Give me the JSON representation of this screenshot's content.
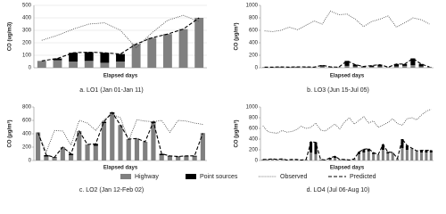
{
  "chart_data": [
    {
      "type": "bar",
      "title": "a. LO1 (Jan 01-Jan 11)",
      "x_label": "Elapsed days",
      "y_label": "CO (ug/m3)",
      "categories": [
        null,
        null,
        null,
        null,
        null,
        null,
        null,
        null,
        null,
        null,
        null
      ],
      "ylim": [
        0,
        500
      ],
      "yticks": [
        0,
        100,
        200,
        300,
        400,
        500
      ],
      "grid": true,
      "series": [
        {
          "name": "Highway",
          "color": "#808080",
          "kind": "bar",
          "values": [
            55,
            60,
            50,
            55,
            40,
            50,
            190,
            240,
            270,
            310,
            400
          ]
        },
        {
          "name": "Point sources",
          "color": "#000000",
          "kind": "bar",
          "values": [
            0,
            15,
            70,
            70,
            80,
            60,
            0,
            0,
            0,
            0,
            0
          ]
        },
        {
          "name": "Observed",
          "color": "#444444",
          "kind": "line",
          "style": "dotted",
          "values": [
            220,
            260,
            310,
            350,
            360,
            300,
            160,
            280,
            380,
            420,
            370
          ]
        },
        {
          "name": "Predicted",
          "color": "#000000",
          "kind": "line",
          "style": "dashed",
          "values": [
            55,
            75,
            120,
            125,
            120,
            110,
            190,
            240,
            270,
            310,
            400
          ]
        }
      ]
    },
    {
      "type": "bar",
      "title": "b. LO3 (Jun 15-Jul 05)",
      "x_label": "Elapsed days",
      "y_label": "CO (μg/m³)",
      "categories": [
        null,
        null,
        null,
        null,
        null,
        null,
        null,
        null,
        null,
        null,
        null,
        null,
        null,
        null,
        null,
        null,
        null,
        null,
        null,
        null,
        null
      ],
      "ylim": [
        0,
        1000
      ],
      "yticks": [
        0,
        200,
        400,
        600,
        800,
        1000
      ],
      "grid": false,
      "series": [
        {
          "color": "#808080",
          "kind": "bar",
          "values": [
            10,
            10,
            15,
            10,
            10,
            15,
            10,
            20,
            15,
            10,
            30,
            20,
            10,
            15,
            20,
            10,
            20,
            30,
            40,
            20,
            15
          ]
        },
        {
          "color": "#000000",
          "kind": "bar",
          "values": [
            0,
            0,
            0,
            0,
            5,
            0,
            0,
            20,
            0,
            0,
            80,
            30,
            10,
            20,
            30,
            0,
            40,
            30,
            110,
            40,
            0
          ]
        },
        {
          "color": "#444444",
          "kind": "line",
          "style": "dotted",
          "values": [
            590,
            580,
            600,
            650,
            610,
            680,
            750,
            700,
            910,
            850,
            860,
            780,
            660,
            740,
            780,
            830,
            650,
            720,
            800,
            770,
            700
          ]
        },
        {
          "color": "#000000",
          "kind": "line",
          "style": "dashed",
          "values": [
            10,
            10,
            15,
            10,
            15,
            15,
            10,
            40,
            15,
            10,
            110,
            50,
            20,
            35,
            50,
            10,
            60,
            60,
            150,
            60,
            15
          ]
        }
      ]
    },
    {
      "type": "bar",
      "title": "c. LO2 (Jan 12-Feb 02)",
      "x_label": "Elapsed days",
      "y_label": "CO (μg/m³)",
      "categories": [
        null,
        null,
        null,
        null,
        null,
        null,
        null,
        null,
        null,
        null,
        null,
        null,
        null,
        null,
        null,
        null,
        null,
        null,
        null,
        null,
        null
      ],
      "ylim": [
        0,
        800
      ],
      "yticks": [
        0,
        200,
        400,
        600,
        800
      ],
      "grid": false,
      "series": [
        {
          "color": "#808080",
          "kind": "bar",
          "values": [
            420,
            60,
            40,
            200,
            80,
            440,
            240,
            220,
            560,
            700,
            530,
            320,
            330,
            280,
            560,
            80,
            60,
            50,
            60,
            60,
            410
          ]
        },
        {
          "color": "#000000",
          "kind": "bar",
          "values": [
            0,
            20,
            10,
            0,
            20,
            0,
            0,
            30,
            20,
            20,
            0,
            0,
            0,
            0,
            20,
            20,
            10,
            10,
            10,
            10,
            0
          ]
        },
        {
          "color": "#444444",
          "kind": "line",
          "style": "dotted",
          "values": [
            410,
            130,
            450,
            440,
            230,
            600,
            560,
            450,
            610,
            690,
            640,
            300,
            610,
            590,
            580,
            600,
            420,
            600,
            590,
            560,
            540
          ]
        },
        {
          "color": "#000000",
          "kind": "line",
          "style": "dashed",
          "values": [
            420,
            80,
            50,
            200,
            100,
            440,
            240,
            250,
            580,
            720,
            530,
            320,
            330,
            280,
            580,
            100,
            70,
            60,
            70,
            70,
            410
          ]
        }
      ]
    },
    {
      "type": "bar",
      "title": "d. LO4 (Jul 06-Aug 10)",
      "x_label": "Elapsed days",
      "y_label": "CO (μg/m³)",
      "categories": [
        null,
        null,
        null,
        null,
        null,
        null,
        null,
        null,
        null,
        null,
        null,
        null,
        null,
        null,
        null,
        null,
        null,
        null,
        null,
        null,
        null,
        null,
        null,
        null,
        null,
        null,
        null,
        null,
        null,
        null,
        null,
        null,
        null,
        null,
        null,
        null
      ],
      "ylim": [
        0,
        1000
      ],
      "yticks": [
        0,
        200,
        400,
        600,
        800,
        1000
      ],
      "grid": false,
      "series": [
        {
          "color": "#808080",
          "kind": "bar",
          "values": [
            20,
            20,
            30,
            20,
            30,
            10,
            20,
            20,
            10,
            20,
            150,
            120,
            20,
            10,
            20,
            50,
            20,
            20,
            10,
            30,
            120,
            150,
            170,
            120,
            110,
            200,
            130,
            150,
            40,
            230,
            200,
            230,
            180,
            150,
            150,
            150
          ]
        },
        {
          "color": "#000000",
          "kind": "bar",
          "values": [
            0,
            0,
            0,
            0,
            0,
            0,
            0,
            0,
            0,
            0,
            200,
            220,
            0,
            0,
            30,
            30,
            0,
            0,
            0,
            0,
            40,
            60,
            50,
            30,
            0,
            100,
            30,
            0,
            0,
            170,
            80,
            0,
            0,
            40,
            40,
            40
          ]
        },
        {
          "color": "#444444",
          "kind": "line",
          "style": "dotted",
          "values": [
            650,
            540,
            520,
            510,
            560,
            530,
            540,
            580,
            640,
            600,
            620,
            700,
            570,
            550,
            620,
            680,
            590,
            720,
            800,
            680,
            750,
            820,
            700,
            740,
            620,
            660,
            710,
            780,
            690,
            660,
            780,
            800,
            760,
            850,
            920,
            960
          ]
        },
        {
          "color": "#000000",
          "kind": "line",
          "style": "dashed",
          "values": [
            20,
            20,
            30,
            20,
            30,
            10,
            20,
            20,
            10,
            20,
            350,
            340,
            20,
            10,
            50,
            80,
            20,
            20,
            10,
            30,
            160,
            210,
            220,
            150,
            110,
            300,
            160,
            150,
            40,
            400,
            280,
            230,
            180,
            190,
            190,
            190
          ]
        }
      ]
    }
  ]
}
